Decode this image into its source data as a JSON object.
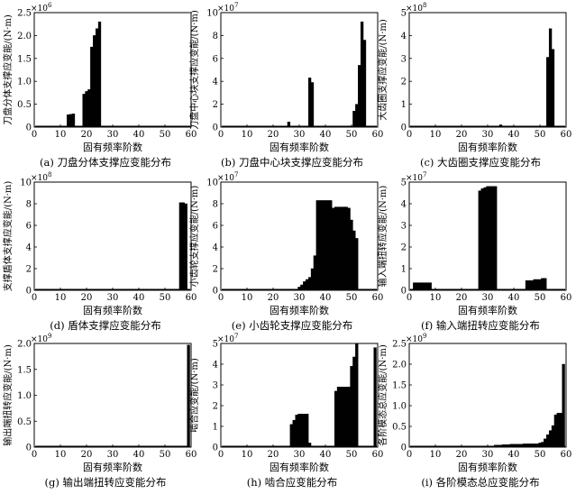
{
  "figure": {
    "panels": [
      {
        "caption": "(a) 刀盘分体支撑应变能分布",
        "ylabel": "刀盘分体支撑应变能/(N·m)",
        "xlabel": "固有频率阶数",
        "exponent": "×10",
        "exponent_power": "6",
        "yticks": [
          "0",
          "0.5",
          "1.0",
          "1.5",
          "2.0",
          "2.5"
        ],
        "xticks": [
          "0",
          "10",
          "20",
          "30",
          "40",
          "50",
          "60"
        ]
      },
      {
        "caption": "(b) 刀盘中心块支撑应变能分布",
        "ylabel": "刀盘中心块支撑应变能/(N·m)",
        "xlabel": "固有频率阶数",
        "exponent": "×10",
        "exponent_power": "7",
        "yticks": [
          "0",
          "2",
          "4",
          "6",
          "8",
          "10"
        ],
        "xticks": [
          "0",
          "10",
          "20",
          "30",
          "40",
          "50",
          "60"
        ]
      },
      {
        "caption": "(c) 大齿圈支撑应变能分布",
        "ylabel": "大齿圈支撑应变能/(N·m)",
        "xlabel": "固有频率阶数",
        "exponent": "×10",
        "exponent_power": "8",
        "yticks": [
          "0",
          "1",
          "2",
          "3",
          "4",
          "5"
        ],
        "xticks": [
          "0",
          "10",
          "20",
          "30",
          "40",
          "50",
          "60"
        ]
      },
      {
        "caption": "(d) 盾体支撑应变能分布",
        "ylabel": "支撑盾体支撑应变能/(N·m)",
        "xlabel": "固有频率阶数",
        "exponent": "×10",
        "exponent_power": "8",
        "yticks": [
          "0",
          "2",
          "4",
          "6",
          "8",
          "10"
        ],
        "xticks": [
          "0",
          "10",
          "20",
          "30",
          "40",
          "50",
          "60"
        ]
      },
      {
        "caption": "(e) 小齿轮支撑应变能分布",
        "ylabel": "小齿轮支撑应变能/(N·m)",
        "xlabel": "固有频率阶数",
        "exponent": "×10",
        "exponent_power": "7",
        "yticks": [
          "0",
          "2",
          "4",
          "6",
          "8",
          "10"
        ],
        "xticks": [
          "0",
          "10",
          "20",
          "30",
          "40",
          "50",
          "60"
        ]
      },
      {
        "caption": "(f) 输入端扭转应变能分布",
        "ylabel": "输入端扭转应变能/(N·m)",
        "xlabel": "固有频率阶数",
        "exponent": "×10",
        "exponent_power": "7",
        "yticks": [
          "0",
          "1",
          "2",
          "3",
          "4",
          "5"
        ],
        "xticks": [
          "0",
          "10",
          "20",
          "30",
          "40",
          "50",
          "60"
        ]
      },
      {
        "caption": "(g) 输出端扭转应变能分布",
        "ylabel": "输出端扭转应变能/(N·m)",
        "xlabel": "固有频率阶数",
        "exponent": "×10",
        "exponent_power": "9",
        "yticks": [
          "0",
          "0.5",
          "1.0",
          "1.5",
          "2.0"
        ],
        "xticks": [
          "0",
          "10",
          "20",
          "30",
          "40",
          "50",
          "60"
        ]
      },
      {
        "caption": "(h) 啮合应变能分布",
        "ylabel": "啮合应变能/(N·m)",
        "xlabel": "固有频率阶数",
        "exponent": "×10",
        "exponent_power": "7",
        "yticks": [
          "0",
          "1",
          "2",
          "3",
          "4",
          "5"
        ],
        "xticks": [
          "0",
          "10",
          "20",
          "30",
          "40",
          "50",
          "60"
        ]
      },
      {
        "caption": "(i) 各阶模态总应变能分布",
        "ylabel": "各阶模态总应变能/(N·m)",
        "xlabel": "固有频率阶数",
        "exponent": "×10",
        "exponent_power": "9",
        "yticks": [
          "0",
          "0.5",
          "1.0",
          "1.5",
          "2.0",
          "2.5"
        ],
        "xticks": [
          "0",
          "10",
          "20",
          "30",
          "40",
          "50",
          "60"
        ]
      }
    ]
  },
  "chart_data": [
    {
      "type": "bar",
      "title": "(a) 刀盘分体支撑应变能分布",
      "xlabel": "固有频率阶数",
      "ylabel": "刀盘分体支撑应变能/(N·m)",
      "xlim": [
        0,
        60
      ],
      "ylim": [
        0,
        2.5
      ],
      "y_scale_factor": "1e6",
      "x": [
        13,
        14,
        15,
        19,
        20,
        21,
        22,
        23,
        24,
        25
      ],
      "values": [
        0.27,
        0.28,
        0.29,
        0.72,
        0.78,
        0.82,
        1.75,
        2.0,
        2.15,
        2.3
      ]
    },
    {
      "type": "bar",
      "title": "(b) 刀盘中心块支撑应变能分布",
      "xlabel": "固有频率阶数",
      "ylabel": "刀盘中心块支撑应变能/(N·m)",
      "xlim": [
        0,
        60
      ],
      "ylim": [
        0,
        10
      ],
      "y_scale_factor": "1e7",
      "x": [
        26,
        34,
        35,
        51,
        52,
        53,
        54,
        55
      ],
      "values": [
        0.45,
        4.3,
        3.9,
        1.4,
        2.0,
        5.4,
        9.2,
        7.6
      ]
    },
    {
      "type": "bar",
      "title": "(c) 大齿圈支撑应变能分布",
      "xlabel": "固有频率阶数",
      "ylabel": "大齿圈支撑应变能/(N·m)",
      "xlim": [
        0,
        60
      ],
      "ylim": [
        0,
        5
      ],
      "y_scale_factor": "1e8",
      "x": [
        35,
        53,
        54,
        55
      ],
      "values": [
        0.1,
        3.05,
        4.3,
        3.4
      ]
    },
    {
      "type": "bar",
      "title": "(d) 盾体支撑应变能分布",
      "xlabel": "固有频率阶数",
      "ylabel": "支撑盾体支撑应变能/(N·m)",
      "xlim": [
        0,
        60
      ],
      "ylim": [
        0,
        10
      ],
      "y_scale_factor": "1e8",
      "x": [
        56,
        57,
        58
      ],
      "values": [
        8.1,
        8.1,
        8.0
      ]
    },
    {
      "type": "bar",
      "title": "(e) 小齿轮支撑应变能分布",
      "xlabel": "固有频率阶数",
      "ylabel": "小齿轮支撑应变能/(N·m)",
      "xlim": [
        0,
        60
      ],
      "ylim": [
        0,
        10
      ],
      "y_scale_factor": "1e7",
      "x": [
        30,
        31,
        32,
        33,
        34,
        35,
        36,
        37,
        38,
        39,
        40,
        41,
        42,
        43,
        44,
        45,
        46,
        47,
        48,
        49,
        50,
        51,
        52
      ],
      "values": [
        0.3,
        0.5,
        0.8,
        1.0,
        1.2,
        2.0,
        3.2,
        8.3,
        8.3,
        8.3,
        8.3,
        8.3,
        8.3,
        7.6,
        7.7,
        7.7,
        7.7,
        7.7,
        7.7,
        7.6,
        6.5,
        5.5,
        4.8
      ]
    },
    {
      "type": "bar",
      "title": "(f) 输入端扭转应变能分布",
      "xlabel": "固有频率阶数",
      "ylabel": "输入端扭转应变能/(N·m)",
      "xlim": [
        0,
        60
      ],
      "ylim": [
        0,
        5
      ],
      "y_scale_factor": "1e7",
      "x": [
        2,
        3,
        4,
        5,
        6,
        7,
        8,
        27,
        28,
        29,
        30,
        31,
        32,
        33,
        45,
        46,
        47,
        48,
        49,
        50,
        51,
        52
      ],
      "values": [
        0.35,
        0.35,
        0.35,
        0.35,
        0.35,
        0.35,
        0.35,
        4.6,
        4.7,
        4.75,
        4.8,
        4.8,
        4.8,
        4.8,
        0.45,
        0.45,
        0.45,
        0.5,
        0.5,
        0.5,
        0.55,
        0.55
      ]
    },
    {
      "type": "bar",
      "title": "(g) 输出端扭转应变能分布",
      "xlabel": "固有频率阶数",
      "ylabel": "输出端扭转应变能/(N·m)",
      "xlim": [
        0,
        60
      ],
      "ylim": [
        0,
        2.0
      ],
      "y_scale_factor": "1e9",
      "x": [
        59
      ],
      "values": [
        1.97
      ]
    },
    {
      "type": "bar",
      "title": "(h) 啮合应变能分布",
      "xlabel": "固有频率阶数",
      "ylabel": "啮合应变能/(N·m)",
      "xlim": [
        0,
        60
      ],
      "ylim": [
        0,
        5
      ],
      "y_scale_factor": "1e7",
      "x": [
        27,
        28,
        29,
        30,
        31,
        32,
        33,
        34,
        44,
        45,
        46,
        47,
        48,
        49,
        50,
        51,
        52,
        59
      ],
      "values": [
        1.1,
        1.3,
        1.55,
        1.6,
        1.6,
        1.6,
        1.6,
        0.2,
        2.7,
        2.9,
        2.9,
        2.9,
        2.9,
        2.9,
        3.9,
        4.35,
        5.0,
        4.8
      ]
    },
    {
      "type": "bar",
      "title": "(i) 各阶模态总应变能分布",
      "xlabel": "固有频率阶数",
      "ylabel": "各阶模态总应变能/(N·m)",
      "xlim": [
        0,
        60
      ],
      "ylim": [
        0,
        2.5
      ],
      "y_scale_factor": "1e9",
      "x": [
        33,
        34,
        35,
        36,
        37,
        38,
        39,
        40,
        41,
        42,
        43,
        44,
        45,
        46,
        47,
        48,
        49,
        50,
        51,
        52,
        53,
        54,
        55,
        56,
        57,
        58,
        59
      ],
      "values": [
        0.05,
        0.05,
        0.05,
        0.06,
        0.06,
        0.06,
        0.07,
        0.07,
        0.07,
        0.07,
        0.07,
        0.08,
        0.08,
        0.08,
        0.08,
        0.08,
        0.08,
        0.1,
        0.12,
        0.2,
        0.3,
        0.4,
        0.52,
        0.78,
        0.82,
        0.82,
        2.0
      ]
    }
  ]
}
